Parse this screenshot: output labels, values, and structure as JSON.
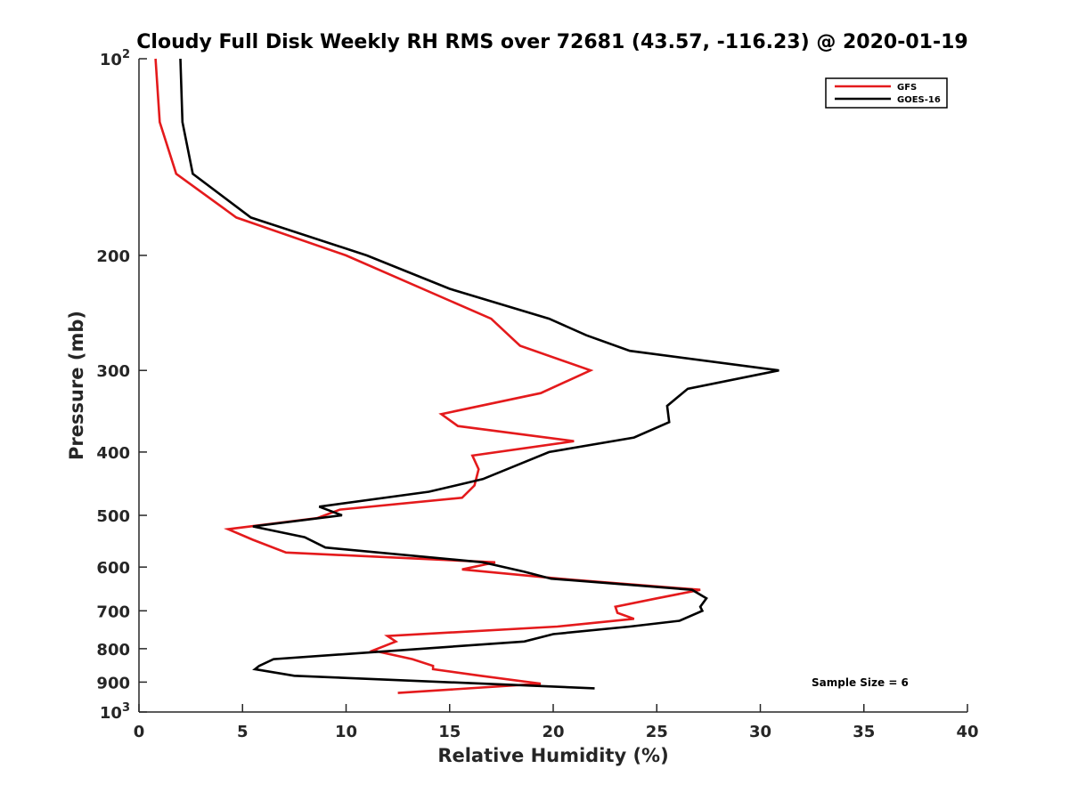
{
  "chart_data": {
    "type": "line",
    "title": "Cloudy Full Disk Weekly RH RMS over 72681 (43.57, -116.23) @ 2020-01-19",
    "xlabel": "Relative Humidity (%)",
    "ylabel": "Pressure (mb)",
    "xlim": [
      0,
      40
    ],
    "ylim": [
      100,
      1000
    ],
    "y_scale": "log",
    "y_reversed": true,
    "grid": false,
    "legend_position": "top-right",
    "x_ticks": [
      "0",
      "5",
      "10",
      "15",
      "20",
      "25",
      "30",
      "35",
      "40"
    ],
    "y_ticks": [
      {
        "value": 100,
        "base": "10",
        "exp": "2"
      },
      {
        "value": 200,
        "label": "200"
      },
      {
        "value": 300,
        "label": "300"
      },
      {
        "value": 400,
        "label": "400"
      },
      {
        "value": 500,
        "label": "500"
      },
      {
        "value": 600,
        "label": "600"
      },
      {
        "value": 700,
        "label": "700"
      },
      {
        "value": 800,
        "label": "800"
      },
      {
        "value": 900,
        "label": "900"
      },
      {
        "value": 1000,
        "base": "10",
        "exp": "3"
      }
    ],
    "annotation": "Sample Size = 6",
    "series": [
      {
        "name": "GFS",
        "color": "#e41a1c",
        "points": [
          [
            0.8,
            100
          ],
          [
            1.0,
            125
          ],
          [
            1.8,
            150
          ],
          [
            4.7,
            175
          ],
          [
            10.0,
            200
          ],
          [
            17.0,
            250
          ],
          [
            18.4,
            275
          ],
          [
            21.8,
            300
          ],
          [
            19.4,
            325
          ],
          [
            14.6,
            350
          ],
          [
            15.4,
            365
          ],
          [
            21.0,
            385
          ],
          [
            16.1,
            405
          ],
          [
            16.4,
            425
          ],
          [
            16.2,
            450
          ],
          [
            15.6,
            470
          ],
          [
            9.7,
            490
          ],
          [
            8.6,
            505
          ],
          [
            4.3,
            525
          ],
          [
            5.5,
            545
          ],
          [
            7.1,
            570
          ],
          [
            17.2,
            590
          ],
          [
            15.6,
            605
          ],
          [
            20.3,
            625
          ],
          [
            27.1,
            650
          ],
          [
            25.0,
            670
          ],
          [
            23.0,
            690
          ],
          [
            23.1,
            705
          ],
          [
            23.9,
            720
          ],
          [
            20.2,
            740
          ],
          [
            12.0,
            765
          ],
          [
            12.4,
            780
          ],
          [
            11.3,
            805
          ],
          [
            13.2,
            830
          ],
          [
            14.2,
            850
          ],
          [
            14.2,
            860
          ],
          [
            16.5,
            880
          ],
          [
            19.4,
            905
          ],
          [
            12.5,
            935
          ]
        ]
      },
      {
        "name": "GOES-16",
        "color": "#000000",
        "points": [
          [
            2.0,
            100
          ],
          [
            2.1,
            125
          ],
          [
            2.6,
            150
          ],
          [
            5.4,
            175
          ],
          [
            11.0,
            200
          ],
          [
            15.0,
            225
          ],
          [
            19.8,
            250
          ],
          [
            21.6,
            265
          ],
          [
            23.7,
            280
          ],
          [
            30.9,
            300
          ],
          [
            26.5,
            320
          ],
          [
            25.5,
            340
          ],
          [
            25.6,
            360
          ],
          [
            23.9,
            380
          ],
          [
            19.8,
            400
          ],
          [
            16.6,
            440
          ],
          [
            14.0,
            460
          ],
          [
            8.7,
            485
          ],
          [
            9.8,
            500
          ],
          [
            5.5,
            520
          ],
          [
            8.0,
            540
          ],
          [
            9.0,
            560
          ],
          [
            16.6,
            590
          ],
          [
            18.6,
            610
          ],
          [
            19.9,
            625
          ],
          [
            26.7,
            650
          ],
          [
            27.4,
            670
          ],
          [
            27.1,
            690
          ],
          [
            27.2,
            700
          ],
          [
            26.1,
            725
          ],
          [
            23.7,
            740
          ],
          [
            20.0,
            760
          ],
          [
            18.6,
            780
          ],
          [
            6.5,
            830
          ],
          [
            5.8,
            850
          ],
          [
            5.6,
            860
          ],
          [
            7.5,
            880
          ],
          [
            22.0,
            920
          ]
        ]
      }
    ]
  }
}
